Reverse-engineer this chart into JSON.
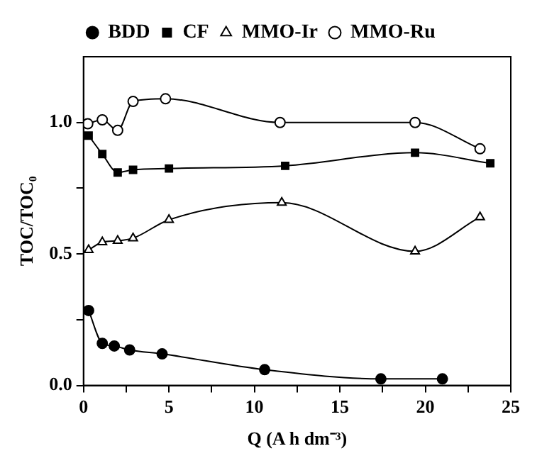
{
  "chart_data": {
    "type": "line",
    "xlabel": "Q (A h dm⁻³)",
    "ylabel": "TOC/TOC₀",
    "xlim": [
      0,
      25
    ],
    "xticks": [
      0,
      {
        "value": 2.5,
        "label": null
      },
      5,
      {
        "value": 7.5,
        "label": null
      },
      10,
      {
        "value": 12.5,
        "label": null
      },
      15,
      {
        "value": 17.5,
        "label": null
      },
      20,
      {
        "value": 22.5,
        "label": null
      },
      25
    ],
    "ylim": [
      0,
      1.25
    ],
    "yticks": [
      {
        "value": 0,
        "label": "0.0"
      },
      {
        "value": 0.25,
        "label": null
      },
      {
        "value": 0.5,
        "label": "0.5"
      },
      {
        "value": 0.75,
        "label": null
      },
      {
        "value": 1,
        "label": "1.0"
      }
    ],
    "legend": "top",
    "grid": false,
    "series": [
      {
        "name": "BDD",
        "color": "#000000",
        "marker": "circle",
        "x": [
          0.3,
          1.1,
          1.8,
          2.7,
          4.6,
          10.6,
          17.4,
          21.0
        ],
        "values": [
          0.285,
          0.16,
          0.15,
          0.135,
          0.12,
          0.06,
          0.025,
          0.025
        ]
      },
      {
        "name": "CF",
        "color": "#000000",
        "marker": "square",
        "x": [
          0.3,
          1.1,
          2.0,
          2.9,
          5.0,
          11.8,
          19.4,
          23.8
        ],
        "values": [
          0.95,
          0.88,
          0.81,
          0.82,
          0.825,
          0.835,
          0.885,
          0.845
        ]
      },
      {
        "name": "MMO-Ir",
        "color": "#000000",
        "marker": "triangle",
        "x": [
          0.3,
          1.1,
          2.0,
          2.9,
          5.0,
          11.6,
          19.4,
          23.2
        ],
        "values": [
          0.515,
          0.545,
          0.55,
          0.56,
          0.63,
          0.695,
          0.51,
          0.64
        ]
      },
      {
        "name": "MMO-Ru",
        "color": "#000000",
        "marker": "circle",
        "x": [
          0.25,
          1.1,
          2.0,
          2.9,
          4.8,
          11.5,
          19.4,
          23.2
        ],
        "values": [
          0.995,
          1.01,
          0.97,
          1.08,
          1.09,
          1.0,
          1.0,
          0.9
        ]
      }
    ]
  }
}
